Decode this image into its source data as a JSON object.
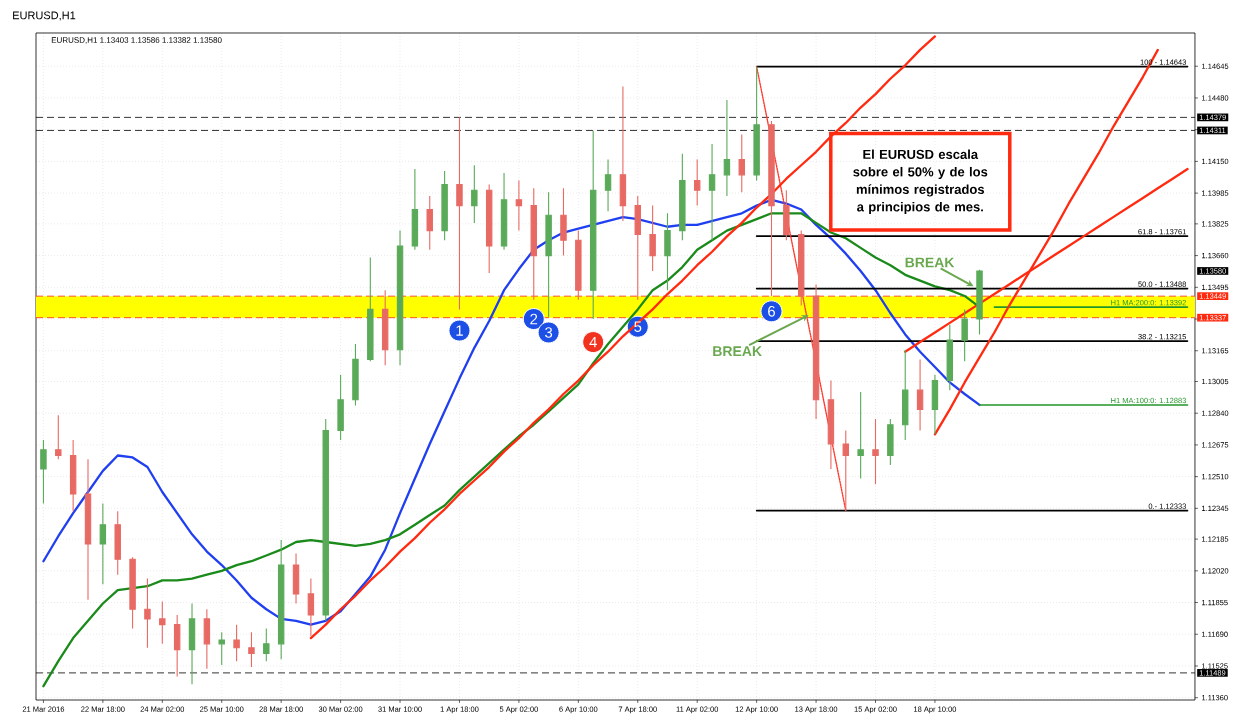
{
  "chart_data": {
    "type": "candlestick",
    "title": "EURUSD,H1",
    "subtitle": "EURUSD,H1 1.13403 1.13586 1.13382 1.13580",
    "categories": [
      "21 Mar 2016",
      null,
      null,
      null,
      "22 Mar 18:00",
      null,
      null,
      null,
      "24 Mar 02:00",
      null,
      null,
      null,
      "25 Mar 10:00",
      null,
      null,
      null,
      "28 Mar 18:00",
      null,
      null,
      null,
      "30 Mar 02:00",
      null,
      null,
      null,
      "31 Mar 10:00",
      null,
      null,
      null,
      "1 Apr 18:00",
      null,
      null,
      null,
      "5 Apr 02:00",
      null,
      null,
      null,
      "6 Apr 10:00",
      null,
      null,
      null,
      "7 Apr 18:00",
      null,
      null,
      null,
      "11 Apr 02:00",
      null,
      null,
      null,
      "12 Apr 10:00",
      null,
      null,
      null,
      "13 Apr 18:00",
      null,
      null,
      null,
      "15 Apr 02:00",
      null,
      null,
      null,
      "18 Apr 10:00",
      null,
      null,
      null,
      null,
      null,
      null,
      null,
      null,
      null,
      null,
      null,
      null,
      null,
      null,
      null,
      null,
      null
    ],
    "ylim": [
      1.11348,
      1.14818
    ],
    "yticks": [
      {
        "value": 1.1136,
        "label": "1.11360"
      },
      1.11525,
      {
        "value": 1.1169,
        "label": "1.11690"
      },
      1.11855,
      {
        "value": 1.1202,
        "label": "1.12020"
      },
      1.12185,
      1.12345,
      {
        "value": 1.1251,
        "label": "1.12510"
      },
      1.12675,
      {
        "value": 1.1284,
        "label": "1.12840"
      },
      1.13005,
      1.13165,
      {
        "value": 1.1333,
        "label": null
      },
      1.13495,
      {
        "value": 1.1366,
        "label": "1.13660"
      },
      1.13825,
      1.13985,
      {
        "value": 1.1415,
        "label": "1.14150"
      },
      {
        "value": 1.14315,
        "label": null
      },
      {
        "value": 1.1448,
        "label": "1.14480"
      },
      1.14645
    ],
    "grid": true,
    "legend": "right",
    "bands": [
      {
        "axis": "y",
        "from": 1.13337,
        "to": 1.13449,
        "color": "#ffff00"
      }
    ],
    "ref_lines": [
      {
        "axis": "y",
        "value": 1.14379,
        "label": "1.14379",
        "color": "#000000",
        "line_style": "dashed"
      },
      {
        "axis": "y",
        "value": 1.14311,
        "label": "1.14311",
        "color": "#000000",
        "line_style": "dashed"
      },
      {
        "axis": "y",
        "value": 1.13449,
        "label": "1.13449",
        "color": "#ff2a10",
        "line_style": "dashed"
      },
      {
        "axis": "y",
        "value": 1.13337,
        "label": "1.13337",
        "color": "#ff2a10",
        "line_style": "dashed"
      },
      {
        "axis": "y",
        "value": 1.11489,
        "label": "1.11489",
        "color": "#000000",
        "line_style": "dashed"
      }
    ],
    "series": [
      {
        "ohlc": [
          [
            1.1255,
            1.127,
            1.1237,
            1.1265
          ],
          [
            1.1265,
            1.1283,
            1.126,
            1.1262
          ],
          [
            1.1262,
            1.127,
            1.1233,
            1.1242
          ],
          [
            1.1242,
            1.126,
            1.1187,
            1.1216
          ],
          [
            1.1216,
            1.1237,
            1.1195,
            1.1226
          ],
          [
            1.1226,
            1.1233,
            1.12,
            1.1208
          ],
          [
            1.1208,
            1.1209,
            1.1172,
            1.1182
          ],
          [
            1.1182,
            1.1198,
            1.1162,
            1.1177
          ],
          [
            1.1177,
            1.1186,
            1.1164,
            1.1174
          ],
          [
            1.1174,
            1.1179,
            1.1147,
            1.1161
          ],
          [
            1.1161,
            1.1185,
            1.1143,
            1.1177
          ],
          [
            1.1177,
            1.1182,
            1.1151,
            1.1164
          ],
          [
            1.1164,
            1.117,
            1.1153,
            1.1166
          ],
          [
            1.1166,
            1.1174,
            1.1155,
            1.1162
          ],
          [
            1.1162,
            1.117,
            1.1152,
            1.1159
          ],
          [
            1.1159,
            1.1172,
            1.1155,
            1.1164
          ],
          [
            1.1164,
            1.1218,
            1.1156,
            1.1205
          ],
          [
            1.1205,
            1.1211,
            1.1185,
            1.119
          ],
          [
            1.119,
            1.1198,
            1.1168,
            1.1179
          ],
          [
            1.1179,
            1.1281,
            1.1176,
            1.1275
          ],
          [
            1.1275,
            1.1304,
            1.127,
            1.1291
          ],
          [
            1.1291,
            1.132,
            1.1288,
            1.1312
          ],
          [
            1.1312,
            1.1365,
            1.1311,
            1.1338
          ],
          [
            1.1338,
            1.1348,
            1.1309,
            1.1317
          ],
          [
            1.1317,
            1.1379,
            1.1309,
            1.1371
          ],
          [
            1.1371,
            1.1411,
            1.1369,
            1.139
          ],
          [
            1.139,
            1.1397,
            1.1369,
            1.1379
          ],
          [
            1.1379,
            1.141,
            1.1374,
            1.1403
          ],
          [
            1.1403,
            1.1438,
            1.1338,
            1.1392
          ],
          [
            1.1392,
            1.1413,
            1.1383,
            1.14
          ],
          [
            1.14,
            1.1403,
            1.1357,
            1.1371
          ],
          [
            1.1371,
            1.1409,
            1.1369,
            1.1395
          ],
          [
            1.1395,
            1.1405,
            1.1379,
            1.1392
          ],
          [
            1.1392,
            1.1401,
            1.1343,
            1.1366
          ],
          [
            1.1366,
            1.1399,
            1.1334,
            1.1387
          ],
          [
            1.1387,
            1.1401,
            1.1366,
            1.1374
          ],
          [
            1.1374,
            1.1379,
            1.1343,
            1.1348
          ],
          [
            1.1348,
            1.1431,
            1.1333,
            1.14
          ],
          [
            1.14,
            1.1416,
            1.1389,
            1.1408
          ],
          [
            1.1408,
            1.1454,
            1.1384,
            1.1392
          ],
          [
            1.1392,
            1.1397,
            1.1343,
            1.1377
          ],
          [
            1.1377,
            1.1392,
            1.1358,
            1.1366
          ],
          [
            1.1366,
            1.1388,
            1.1348,
            1.1379
          ],
          [
            1.1379,
            1.1419,
            1.1374,
            1.1405
          ],
          [
            1.1405,
            1.1416,
            1.1392,
            1.14
          ],
          [
            1.14,
            1.1424,
            1.1374,
            1.1408
          ],
          [
            1.1408,
            1.1447,
            1.1397,
            1.1416
          ],
          [
            1.1416,
            1.1429,
            1.1399,
            1.1408
          ],
          [
            1.1408,
            1.14643,
            1.1405,
            1.1434
          ],
          [
            1.1434,
            1.1436,
            1.1345,
            1.1392
          ],
          [
            1.1392,
            1.14,
            1.1374,
            1.1377
          ],
          [
            1.1377,
            1.1379,
            1.134,
            1.1345
          ],
          [
            1.1345,
            1.1351,
            1.1281,
            1.1291
          ],
          [
            1.1291,
            1.1301,
            1.1255,
            1.1268
          ],
          [
            1.1268,
            1.1275,
            1.12333,
            1.1262
          ],
          [
            1.1262,
            1.1295,
            1.125,
            1.1265
          ],
          [
            1.1265,
            1.1281,
            1.1247,
            1.1262
          ],
          [
            1.1262,
            1.1281,
            1.1257,
            1.1278
          ],
          [
            1.1278,
            1.1317,
            1.127,
            1.1296
          ],
          [
            1.1296,
            1.1312,
            1.1275,
            1.1286
          ],
          [
            1.1286,
            1.1304,
            1.1273,
            1.1301
          ],
          [
            1.1301,
            1.133,
            1.1296,
            1.1322
          ],
          [
            1.1322,
            1.1338,
            1.1311,
            1.1333
          ],
          [
            1.1333,
            1.13586,
            1.1325,
            1.1358
          ],
          null,
          null,
          null,
          null,
          null,
          null,
          null,
          null,
          null,
          null,
          null,
          null,
          null,
          null
        ],
        "colors": [
          "#5aaa5a",
          "#e86a64",
          "#e86a64",
          "#e86a64",
          "#5aaa5a",
          "#e86a64",
          "#e86a64",
          "#e86a64",
          "#e86a64",
          "#e86a64",
          "#5aaa5a",
          "#e86a64",
          "#5aaa5a",
          "#e86a64",
          "#e86a64",
          "#5aaa5a",
          "#5aaa5a",
          "#e86a64",
          "#e86a64",
          "#5aaa5a",
          "#5aaa5a",
          "#5aaa5a",
          "#5aaa5a",
          "#e86a64",
          "#5aaa5a",
          "#5aaa5a",
          "#e86a64",
          "#5aaa5a",
          "#e86a64",
          "#5aaa5a",
          "#e86a64",
          "#5aaa5a",
          "#e86a64",
          "#e86a64",
          "#5aaa5a",
          "#e86a64",
          "#e86a64",
          "#5aaa5a",
          "#5aaa5a",
          "#e86a64",
          "#e86a64",
          "#e86a64",
          "#5aaa5a",
          "#5aaa5a",
          "#e86a64",
          "#5aaa5a",
          "#5aaa5a",
          "#e86a64",
          "#5aaa5a",
          "#e86a64",
          "#e86a64",
          "#e86a64",
          "#e86a64",
          "#e86a64",
          "#e86a64",
          "#5aaa5a",
          "#e86a64",
          "#5aaa5a",
          "#5aaa5a",
          "#e86a64",
          "#5aaa5a",
          "#5aaa5a",
          "#5aaa5a",
          "#5aaa5a",
          null,
          null,
          null,
          null,
          null,
          null,
          null,
          null,
          null,
          null,
          null,
          null,
          null,
          null
        ]
      },
      {
        "type": "line",
        "color": "#1f3ff0",
        "values": [
          1.1207,
          1.122,
          1.1232,
          1.1243,
          1.1254,
          1.1262,
          1.1261,
          1.1256,
          1.1243,
          1.1232,
          1.1221,
          1.1212,
          1.1205,
          1.1197,
          1.1188,
          1.1182,
          1.1177,
          1.1176,
          1.1174,
          1.1176,
          1.1181,
          1.119,
          1.1199,
          1.1213,
          1.1232,
          1.125,
          1.1268,
          1.1285,
          1.1302,
          1.1318,
          1.1332,
          1.1348,
          1.1359,
          1.1369,
          1.1374,
          1.1378,
          1.138,
          1.1382,
          1.1384,
          1.1386,
          1.1385,
          1.1383,
          1.1381,
          1.1382,
          1.1382,
          1.1384,
          1.1386,
          1.1388,
          1.1392,
          1.1395,
          1.1393,
          1.139,
          1.1382,
          1.1375,
          1.1367,
          1.1358,
          1.1348,
          1.1336,
          1.1325,
          1.1316,
          1.1308,
          1.13,
          1.1294,
          1.12883,
          null,
          null,
          null,
          null,
          null,
          null,
          null,
          null,
          null,
          null,
          null,
          null,
          null,
          null
        ]
      },
      {
        "type": "line",
        "color": "#1a8a1a",
        "values": [
          1.1142,
          1.1155,
          1.1167,
          1.1176,
          1.1185,
          1.1192,
          1.1193,
          1.1194,
          1.1197,
          1.1197,
          1.1198,
          1.12,
          1.1202,
          1.1205,
          1.1207,
          1.121,
          1.1213,
          1.1217,
          1.1218,
          1.1217,
          1.1216,
          1.1215,
          1.1216,
          1.1218,
          1.1221,
          1.1226,
          1.1231,
          1.1236,
          1.1244,
          1.1251,
          1.1258,
          1.1265,
          1.1272,
          1.1278,
          1.1285,
          1.1292,
          1.1299,
          1.131,
          1.132,
          1.1329,
          1.1338,
          1.1348,
          1.1353,
          1.136,
          1.1369,
          1.1374,
          1.1379,
          1.1382,
          1.1385,
          1.1388,
          1.1388,
          1.1388,
          1.1383,
          1.1378,
          1.1375,
          1.137,
          1.1365,
          1.1361,
          1.1356,
          1.1353,
          1.135,
          1.1348,
          1.1345,
          1.13392,
          null,
          null,
          null,
          null,
          null,
          null,
          null,
          null,
          null,
          null,
          null,
          null,
          null,
          null
        ]
      },
      {
        "type": "line",
        "name": "H1 MA:100:0: 1.12883",
        "color": "#22962a",
        "values": [
          null,
          null,
          null,
          null,
          null,
          null,
          null,
          null,
          null,
          null,
          null,
          null,
          null,
          null,
          null,
          null,
          null,
          null,
          null,
          null,
          null,
          null,
          null,
          null,
          null,
          null,
          null,
          null,
          null,
          null,
          null,
          null,
          null,
          null,
          null,
          null,
          null,
          null,
          null,
          null,
          null,
          null,
          null,
          null,
          null,
          null,
          null,
          null,
          null,
          null,
          null,
          null,
          null,
          null,
          null,
          null,
          null,
          null,
          null,
          null,
          null,
          null,
          null,
          1.12883,
          1.12883,
          1.12883,
          1.12883,
          1.12883,
          1.12883,
          1.12883,
          1.12883,
          1.12883,
          1.12883,
          1.12883,
          1.12883,
          1.12883,
          1.12883,
          1.12883
        ]
      },
      {
        "type": "line",
        "name": "H1 MA:200:0: 1.13392",
        "color": "#22962a",
        "values": [
          null,
          null,
          null,
          null,
          null,
          null,
          null,
          null,
          null,
          null,
          null,
          null,
          null,
          null,
          null,
          null,
          null,
          null,
          null,
          null,
          null,
          null,
          null,
          null,
          null,
          null,
          null,
          null,
          null,
          null,
          null,
          null,
          null,
          null,
          null,
          null,
          null,
          null,
          null,
          null,
          null,
          null,
          null,
          null,
          null,
          null,
          null,
          null,
          null,
          null,
          null,
          null,
          null,
          null,
          null,
          null,
          null,
          null,
          null,
          null,
          null,
          null,
          null,
          null,
          1.13392,
          1.13392,
          1.13392,
          1.13392,
          1.13392,
          1.13392,
          1.13392,
          1.13392,
          1.13392,
          1.13392,
          1.13392,
          1.13392,
          1.13392,
          1.13392
        ]
      },
      {
        "type": "line",
        "name": "100 - 1.14643",
        "color": "#000000",
        "values": [
          null,
          null,
          null,
          null,
          null,
          null,
          null,
          null,
          null,
          null,
          null,
          null,
          null,
          null,
          null,
          null,
          null,
          null,
          null,
          null,
          null,
          null,
          null,
          null,
          null,
          null,
          null,
          null,
          null,
          null,
          null,
          null,
          null,
          null,
          null,
          null,
          null,
          null,
          null,
          null,
          null,
          null,
          null,
          null,
          null,
          null,
          null,
          null,
          1.14643,
          1.14643,
          1.14643,
          1.14643,
          1.14643,
          1.14643,
          1.14643,
          1.14643,
          1.14643,
          1.14643,
          1.14643,
          1.14643,
          1.14643,
          1.14643,
          1.14643,
          1.14643,
          1.14643,
          1.14643,
          1.14643,
          1.14643,
          1.14643,
          1.14643,
          1.14643,
          1.14643,
          1.14643,
          1.14643,
          1.14643,
          1.14643,
          1.14643,
          1.14643
        ]
      },
      {
        "type": "line",
        "name": "61.8 - 1.13761",
        "color": "#000000",
        "values": [
          null,
          null,
          null,
          null,
          null,
          null,
          null,
          null,
          null,
          null,
          null,
          null,
          null,
          null,
          null,
          null,
          null,
          null,
          null,
          null,
          null,
          null,
          null,
          null,
          null,
          null,
          null,
          null,
          null,
          null,
          null,
          null,
          null,
          null,
          null,
          null,
          null,
          null,
          null,
          null,
          null,
          null,
          null,
          null,
          null,
          null,
          null,
          null,
          1.13761,
          1.13761,
          1.13761,
          1.13761,
          1.13761,
          1.13761,
          1.13761,
          1.13761,
          1.13761,
          1.13761,
          1.13761,
          1.13761,
          1.13761,
          1.13761,
          1.13761,
          1.13761,
          1.13761,
          1.13761,
          1.13761,
          1.13761,
          1.13761,
          1.13761,
          1.13761,
          1.13761,
          1.13761,
          1.13761,
          1.13761,
          1.13761,
          1.13761,
          1.13761
        ]
      },
      {
        "type": "line",
        "name": "50.0 - 1.13488",
        "color": "#000000",
        "values": [
          null,
          null,
          null,
          null,
          null,
          null,
          null,
          null,
          null,
          null,
          null,
          null,
          null,
          null,
          null,
          null,
          null,
          null,
          null,
          null,
          null,
          null,
          null,
          null,
          null,
          null,
          null,
          null,
          null,
          null,
          null,
          null,
          null,
          null,
          null,
          null,
          null,
          null,
          null,
          null,
          null,
          null,
          null,
          null,
          null,
          null,
          null,
          null,
          1.13488,
          1.13488,
          1.13488,
          1.13488,
          1.13488,
          1.13488,
          1.13488,
          1.13488,
          1.13488,
          1.13488,
          1.13488,
          1.13488,
          1.13488,
          1.13488,
          1.13488,
          1.13488,
          1.13488,
          1.13488,
          1.13488,
          1.13488,
          1.13488,
          1.13488,
          1.13488,
          1.13488,
          1.13488,
          1.13488,
          1.13488,
          1.13488,
          1.13488,
          1.13488
        ]
      },
      {
        "type": "line",
        "name": "38.2 - 1.13215",
        "color": "#000000",
        "values": [
          null,
          null,
          null,
          null,
          null,
          null,
          null,
          null,
          null,
          null,
          null,
          null,
          null,
          null,
          null,
          null,
          null,
          null,
          null,
          null,
          null,
          null,
          null,
          null,
          null,
          null,
          null,
          null,
          null,
          null,
          null,
          null,
          null,
          null,
          null,
          null,
          null,
          null,
          null,
          null,
          null,
          null,
          null,
          null,
          null,
          null,
          null,
          null,
          1.13215,
          1.13215,
          1.13215,
          1.13215,
          1.13215,
          1.13215,
          1.13215,
          1.13215,
          1.13215,
          1.13215,
          1.13215,
          1.13215,
          1.13215,
          1.13215,
          1.13215,
          1.13215,
          1.13215,
          1.13215,
          1.13215,
          1.13215,
          1.13215,
          1.13215,
          1.13215,
          1.13215,
          1.13215,
          1.13215,
          1.13215,
          1.13215,
          1.13215,
          1.13215
        ]
      },
      {
        "type": "line",
        "name": "0.- 1.12333",
        "color": "#000000",
        "values": [
          null,
          null,
          null,
          null,
          null,
          null,
          null,
          null,
          null,
          null,
          null,
          null,
          null,
          null,
          null,
          null,
          null,
          null,
          null,
          null,
          null,
          null,
          null,
          null,
          null,
          null,
          null,
          null,
          null,
          null,
          null,
          null,
          null,
          null,
          null,
          null,
          null,
          null,
          null,
          null,
          null,
          null,
          null,
          null,
          null,
          null,
          null,
          null,
          1.12333,
          1.12333,
          1.12333,
          1.12333,
          1.12333,
          1.12333,
          1.12333,
          1.12333,
          1.12333,
          1.12333,
          1.12333,
          1.12333,
          1.12333,
          1.12333,
          1.12333,
          1.12333,
          1.12333,
          1.12333,
          1.12333,
          1.12333,
          1.12333,
          1.12333,
          1.12333,
          1.12333,
          1.12333,
          1.12333,
          1.12333,
          1.12333,
          1.12333,
          1.12333
        ]
      },
      {
        "type": "line",
        "color": "#ff3b2f",
        "line_style": "dotted",
        "values": [
          null,
          null,
          null,
          null,
          null,
          null,
          null,
          null,
          null,
          null,
          null,
          null,
          null,
          null,
          null,
          null,
          null,
          null,
          null,
          null,
          null,
          null,
          null,
          null,
          null,
          null,
          null,
          null,
          null,
          null,
          null,
          null,
          null,
          null,
          null,
          null,
          null,
          null,
          null,
          null,
          null,
          null,
          null,
          null,
          null,
          null,
          null,
          null,
          1.14643,
          1.14258,
          1.13873,
          1.13488,
          1.13103,
          1.12718,
          1.12333,
          null,
          null,
          null,
          null,
          null,
          null,
          null,
          null,
          null,
          null,
          null,
          null,
          null,
          null,
          null,
          null,
          null,
          null,
          null,
          null,
          null,
          null,
          null
        ]
      },
      {
        "type": "line",
        "color": "#ff2a10",
        "values": [
          null,
          null,
          null,
          null,
          null,
          null,
          null,
          null,
          null,
          null,
          null,
          null,
          null,
          null,
          null,
          null,
          null,
          null,
          1.1167,
          1.1174,
          1.1182,
          1.1189,
          1.1197,
          1.1204,
          1.1212,
          1.1219,
          1.1227,
          1.1234,
          1.1242,
          1.1249,
          1.1256,
          1.1264,
          1.1271,
          1.1279,
          1.1286,
          1.1294,
          1.1301,
          1.1309,
          1.1316,
          1.1324,
          1.1331,
          1.1338,
          1.1346,
          1.1353,
          1.1361,
          1.1368,
          1.1376,
          1.1383,
          1.1391,
          1.1398,
          1.1406,
          1.1413,
          1.142,
          1.1428,
          1.1435,
          1.1443,
          1.145,
          1.1458,
          1.1465,
          1.1473,
          1.148,
          null,
          null,
          null,
          null,
          null,
          null,
          null,
          null,
          null,
          null,
          null,
          null,
          null,
          null,
          null,
          null,
          null
        ]
      },
      {
        "type": "line",
        "color": "#ff2a10",
        "values": [
          null,
          null,
          null,
          null,
          null,
          null,
          null,
          null,
          null,
          null,
          null,
          null,
          null,
          null,
          null,
          null,
          null,
          null,
          null,
          null,
          null,
          null,
          null,
          null,
          null,
          null,
          null,
          null,
          null,
          null,
          null,
          null,
          null,
          null,
          null,
          null,
          null,
          null,
          null,
          null,
          null,
          null,
          null,
          null,
          null,
          null,
          null,
          null,
          null,
          null,
          null,
          null,
          null,
          null,
          null,
          null,
          null,
          null,
          null,
          null,
          1.1273,
          1.1286,
          1.13,
          1.1313,
          1.1326,
          1.134,
          1.1353,
          1.1366,
          1.1379,
          1.1393,
          1.1406,
          1.1419,
          1.1433,
          1.1446,
          1.1459,
          1.1473,
          null,
          null
        ]
      },
      {
        "type": "line",
        "color": "#ff2a10",
        "values": [
          null,
          null,
          null,
          null,
          null,
          null,
          null,
          null,
          null,
          null,
          null,
          null,
          null,
          null,
          null,
          null,
          null,
          null,
          null,
          null,
          null,
          null,
          null,
          null,
          null,
          null,
          null,
          null,
          null,
          null,
          null,
          null,
          null,
          null,
          null,
          null,
          null,
          null,
          null,
          null,
          null,
          null,
          null,
          null,
          null,
          null,
          null,
          null,
          null,
          null,
          null,
          null,
          null,
          null,
          null,
          null,
          null,
          null,
          1.1316,
          1.1321,
          1.1326,
          1.1331,
          1.1336,
          1.1341,
          1.1346,
          1.1351,
          1.1356,
          1.1361,
          1.1366,
          1.1371,
          1.1376,
          1.1381,
          1.1386,
          1.1391,
          1.1396,
          1.1401,
          1.1406,
          1.1411
        ]
      },
      {
        "type": "scatter",
        "name": "1",
        "marker": "circle",
        "color": "#1c4fe6",
        "values": [
          null,
          null,
          null,
          null,
          null,
          null,
          null,
          null,
          null,
          null,
          null,
          null,
          null,
          null,
          null,
          null,
          null,
          null,
          null,
          null,
          null,
          null,
          null,
          null,
          null,
          null,
          null,
          null,
          1.1327,
          null,
          null,
          null,
          null,
          null,
          null,
          null,
          null,
          null,
          null,
          null,
          null,
          null,
          null,
          null,
          null,
          null,
          null,
          null,
          null,
          null,
          null,
          null,
          null,
          null,
          null,
          null,
          null,
          null,
          null,
          null,
          null,
          null,
          null,
          null,
          null,
          null,
          null,
          null,
          null,
          null,
          null,
          null,
          null,
          null,
          null,
          null,
          null,
          null
        ]
      },
      {
        "type": "scatter",
        "name": "2",
        "marker": "circle",
        "color": "#1c4fe6",
        "values": [
          null,
          null,
          null,
          null,
          null,
          null,
          null,
          null,
          null,
          null,
          null,
          null,
          null,
          null,
          null,
          null,
          null,
          null,
          null,
          null,
          null,
          null,
          null,
          null,
          null,
          null,
          null,
          null,
          null,
          null,
          null,
          null,
          null,
          1.1333,
          null,
          null,
          null,
          null,
          null,
          null,
          null,
          null,
          null,
          null,
          null,
          null,
          null,
          null,
          null,
          null,
          null,
          null,
          null,
          null,
          null,
          null,
          null,
          null,
          null,
          null,
          null,
          null,
          null,
          null,
          null,
          null,
          null,
          null,
          null,
          null,
          null,
          null,
          null,
          null,
          null,
          null,
          null,
          null
        ]
      },
      {
        "type": "scatter",
        "name": "3",
        "marker": "circle",
        "color": "#1c4fe6",
        "values": [
          null,
          null,
          null,
          null,
          null,
          null,
          null,
          null,
          null,
          null,
          null,
          null,
          null,
          null,
          null,
          null,
          null,
          null,
          null,
          null,
          null,
          null,
          null,
          null,
          null,
          null,
          null,
          null,
          null,
          null,
          null,
          null,
          null,
          null,
          1.1326,
          null,
          null,
          null,
          null,
          null,
          null,
          null,
          null,
          null,
          null,
          null,
          null,
          null,
          null,
          null,
          null,
          null,
          null,
          null,
          null,
          null,
          null,
          null,
          null,
          null,
          null,
          null,
          null,
          null,
          null,
          null,
          null,
          null,
          null,
          null,
          null,
          null,
          null,
          null,
          null,
          null,
          null,
          null
        ]
      },
      {
        "type": "scatter",
        "name": "4",
        "marker": "circle",
        "color": "#f0321e",
        "values": [
          null,
          null,
          null,
          null,
          null,
          null,
          null,
          null,
          null,
          null,
          null,
          null,
          null,
          null,
          null,
          null,
          null,
          null,
          null,
          null,
          null,
          null,
          null,
          null,
          null,
          null,
          null,
          null,
          null,
          null,
          null,
          null,
          null,
          null,
          null,
          null,
          null,
          1.1321,
          null,
          null,
          null,
          null,
          null,
          null,
          null,
          null,
          null,
          null,
          null,
          null,
          null,
          null,
          null,
          null,
          null,
          null,
          null,
          null,
          null,
          null,
          null,
          null,
          null,
          null,
          null,
          null,
          null,
          null,
          null,
          null,
          null,
          null,
          null,
          null,
          null,
          null,
          null,
          null
        ]
      },
      {
        "type": "scatter",
        "name": "5",
        "marker": "circle",
        "color": "#1c4fe6",
        "values": [
          null,
          null,
          null,
          null,
          null,
          null,
          null,
          null,
          null,
          null,
          null,
          null,
          null,
          null,
          null,
          null,
          null,
          null,
          null,
          null,
          null,
          null,
          null,
          null,
          null,
          null,
          null,
          null,
          null,
          null,
          null,
          null,
          null,
          null,
          null,
          null,
          null,
          null,
          null,
          null,
          1.1329,
          null,
          null,
          null,
          null,
          null,
          null,
          null,
          null,
          null,
          null,
          null,
          null,
          null,
          null,
          null,
          null,
          null,
          null,
          null,
          null,
          null,
          null,
          null,
          null,
          null,
          null,
          null,
          null,
          null,
          null,
          null,
          null,
          null,
          null,
          null,
          null,
          null
        ]
      },
      {
        "type": "scatter",
        "name": "6",
        "marker": "circle",
        "color": "#1c4fe6",
        "values": [
          null,
          null,
          null,
          null,
          null,
          null,
          null,
          null,
          null,
          null,
          null,
          null,
          null,
          null,
          null,
          null,
          null,
          null,
          null,
          null,
          null,
          null,
          null,
          null,
          null,
          null,
          null,
          null,
          null,
          null,
          null,
          null,
          null,
          null,
          null,
          null,
          null,
          null,
          null,
          null,
          null,
          null,
          null,
          null,
          null,
          null,
          null,
          null,
          null,
          1.1337,
          null,
          null,
          null,
          null,
          null,
          null,
          null,
          null,
          null,
          null,
          null,
          null,
          null,
          null,
          null,
          null,
          null,
          null,
          null,
          null,
          null,
          null,
          null,
          null,
          null,
          null,
          null,
          null
        ]
      }
    ],
    "annotations": [
      "El EURUSD escala sobre el 50% y de los mínimos registrados a principios de mes.",
      {
        "text": "BREAK",
        "y": 1.1335
      },
      {
        "text": "BREAK",
        "y": 1.135
      },
      "1.13580"
    ]
  }
}
